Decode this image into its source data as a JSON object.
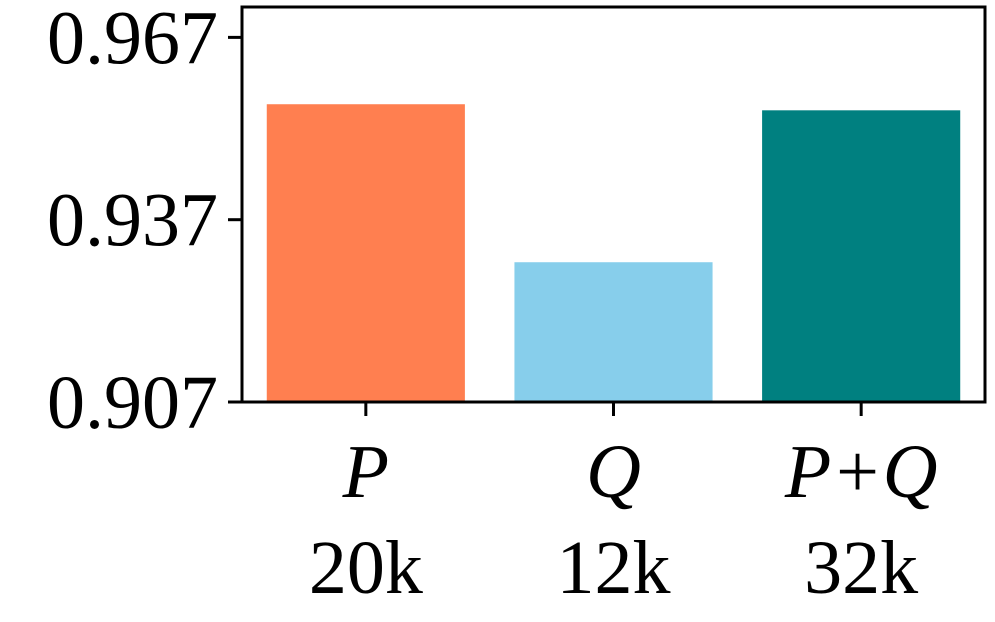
{
  "chart_data": {
    "type": "bar",
    "categories": [
      "P",
      "Q",
      "P+Q"
    ],
    "category_sublabels": [
      "20k",
      "12k",
      "32k"
    ],
    "values": [
      0.956,
      0.93,
      0.955
    ],
    "colors": [
      "#FF7F50",
      "#87CEEB",
      "#008080"
    ],
    "ylim": [
      0.907,
      0.972
    ],
    "yticks": [
      "0.907",
      "0.937",
      "0.967"
    ],
    "title": "",
    "xlabel": "",
    "ylabel": "",
    "grid": false,
    "legend": "none"
  }
}
